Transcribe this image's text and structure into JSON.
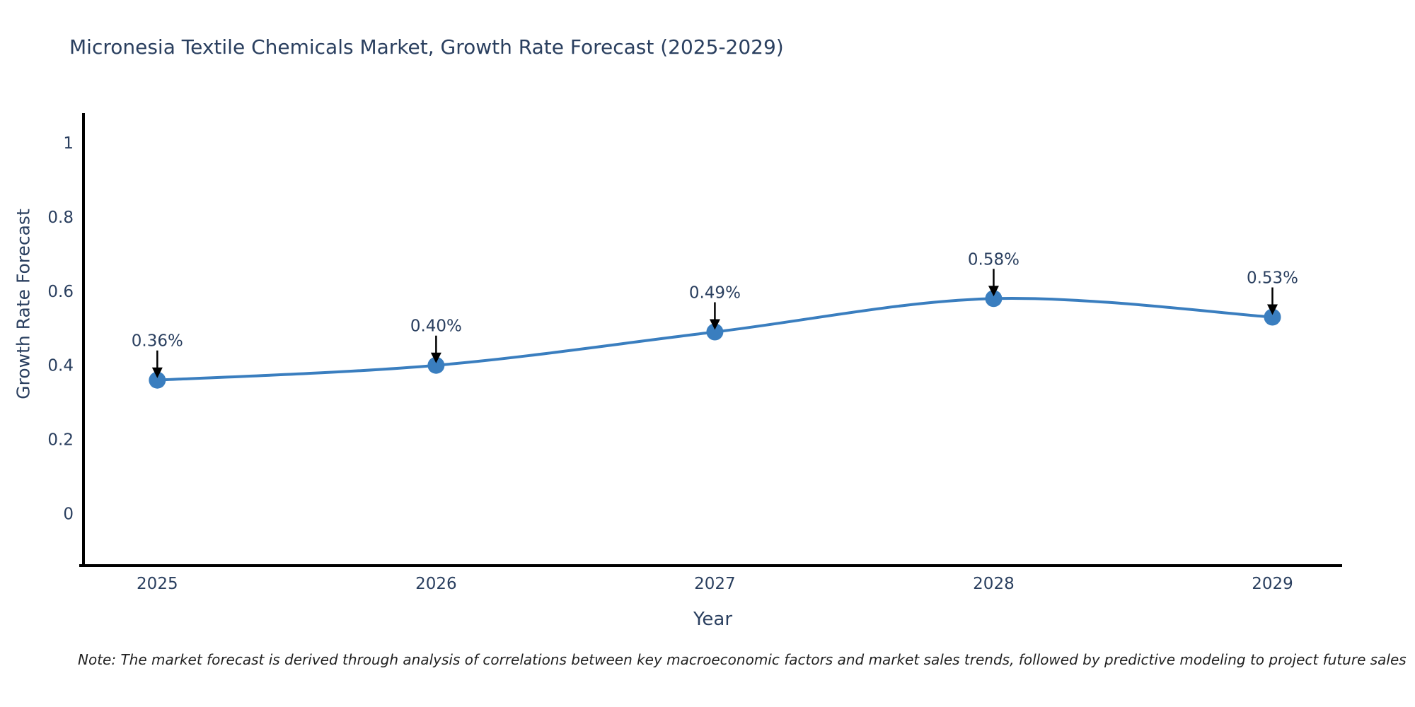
{
  "note": "Note: The market forecast is derived through analysis of correlations between key macroeconomic factors and market sales trends, followed by predictive modeling to project future sales",
  "chart_data": {
    "type": "line",
    "title": "Micronesia Textile Chemicals Market, Growth Rate Forecast (2025-2029)",
    "xlabel": "Year",
    "ylabel": "Growth Rate Forecast",
    "x": [
      2025,
      2026,
      2027,
      2028,
      2029
    ],
    "categories": [
      "2025",
      "2026",
      "2027",
      "2028",
      "2029"
    ],
    "values": [
      0.36,
      0.4,
      0.49,
      0.58,
      0.53
    ],
    "point_labels": [
      "0.36%",
      "0.40%",
      "0.49%",
      "0.58%",
      "0.53%"
    ],
    "yticks": [
      0,
      0.2,
      0.4,
      0.6,
      0.8,
      1
    ],
    "ytick_labels": [
      "0",
      "0.2",
      "0.4",
      "0.6",
      "0.8",
      "1"
    ],
    "ylim": [
      -0.14,
      1.08
    ],
    "xlim": [
      2024.72,
      2029.25
    ],
    "grid": false,
    "legend": "none",
    "line_shape": "spline",
    "colors": {
      "line": "#3a7ebf",
      "marker": "#3a7ebf",
      "axis": "#000000",
      "text": "#2a3f5f",
      "annotation_arrow": "#000000",
      "note_text": "#222222",
      "background": "#ffffff"
    }
  }
}
